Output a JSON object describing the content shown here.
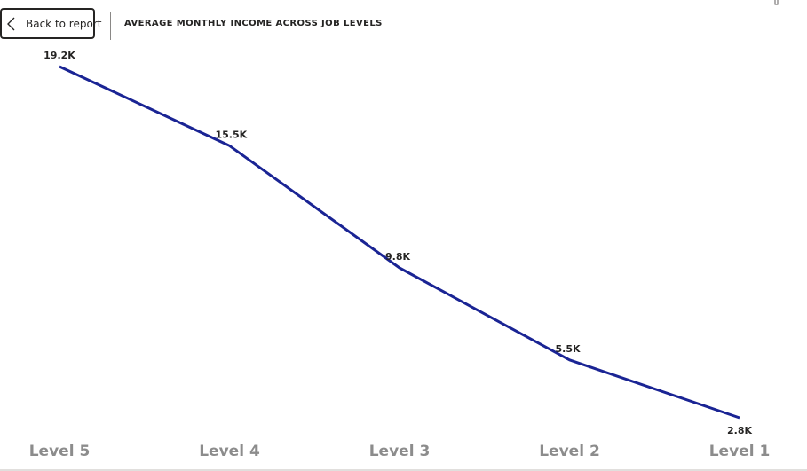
{
  "header": {
    "back_label": "Back to report",
    "title": "AVERAGE MONTHLY INCOME ACROSS JOB LEVELS"
  },
  "colors": {
    "line": "#1a2494",
    "tick_label": "#8c8c8c",
    "data_label": "#252423"
  },
  "chart_data": {
    "type": "line",
    "title": "AVERAGE MONTHLY INCOME ACROSS JOB LEVELS",
    "xlabel": "",
    "ylabel": "",
    "categories": [
      "Level 5",
      "Level 4",
      "Level 3",
      "Level 2",
      "Level 1"
    ],
    "series": [
      {
        "values": [
          19200,
          15500,
          9800,
          5500,
          2800
        ],
        "labels": [
          "19.2K",
          "15.5K",
          "9.8K",
          "5.5K",
          "2.8K"
        ]
      }
    ],
    "ylim": [
      2800,
      19200
    ],
    "grid": false,
    "legend": "none"
  }
}
